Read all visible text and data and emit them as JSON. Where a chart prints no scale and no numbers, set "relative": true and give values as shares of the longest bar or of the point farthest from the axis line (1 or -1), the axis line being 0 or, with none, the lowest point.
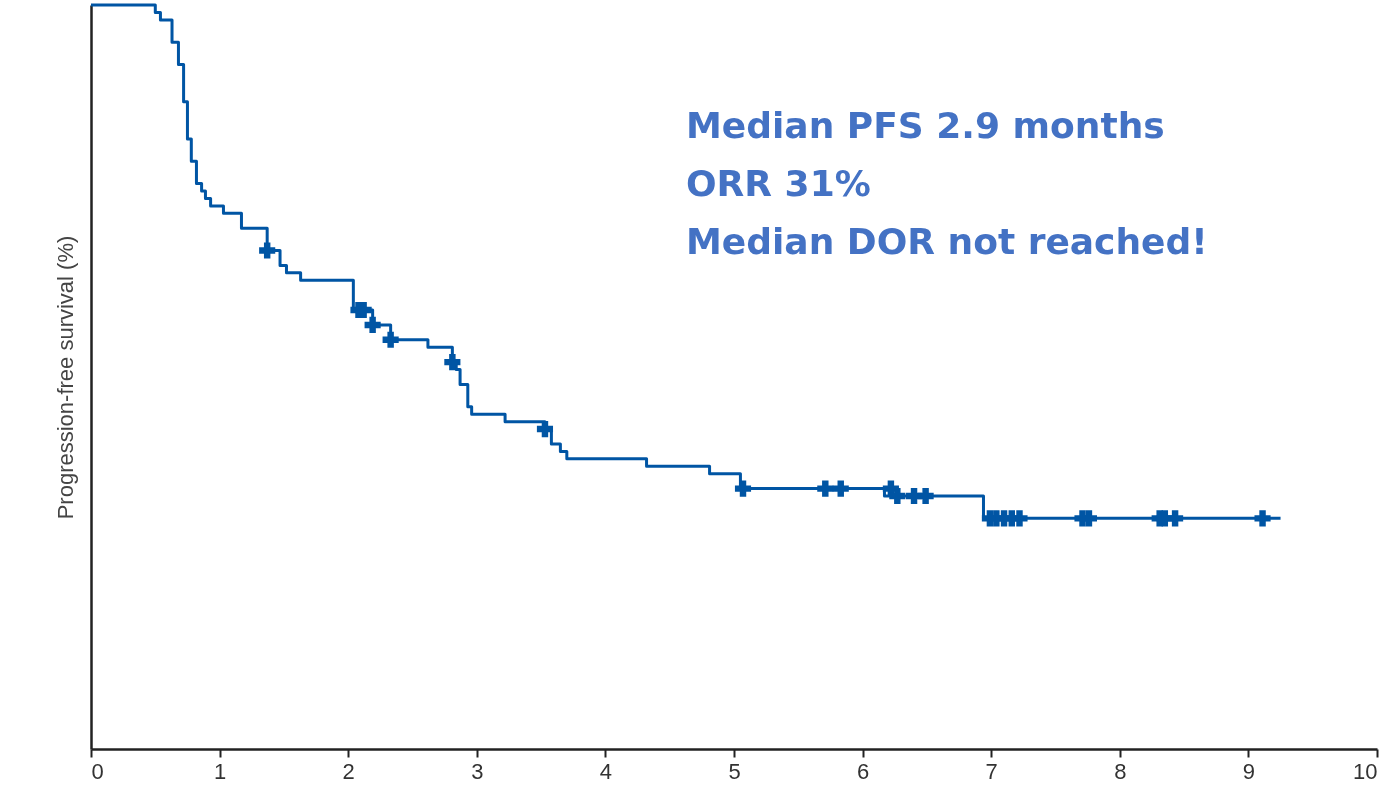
{
  "chart_data": {
    "type": "step",
    "ylabel": "Progression-free survival (%)",
    "relative": true,
    "xlim": [
      0,
      10
    ],
    "xticks": [
      0,
      1,
      2,
      3,
      4,
      5,
      6,
      7,
      8,
      9,
      10
    ],
    "grid": false,
    "line_style": "solid",
    "annotations": [
      "Median PFS 2.9 months",
      "ORR 31%",
      "Median DOR not reached!"
    ],
    "series": [
      {
        "color": "#0055a4",
        "marker": "none",
        "x": [
          0,
          0.5,
          0.54,
          0.63,
          0.68,
          0.72,
          0.75,
          0.78,
          0.82,
          0.86,
          0.89,
          0.93,
          1.03,
          1.17,
          1.37,
          1.47,
          1.52,
          1.63,
          2.04,
          2.19,
          2.33,
          2.62,
          2.81,
          2.84,
          2.87,
          2.93,
          2.96,
          3.22,
          3.53,
          3.58,
          3.65,
          3.7,
          4.32,
          4.81,
          5.05,
          6.17,
          6.94,
          9.25
        ],
        "values": [
          1,
          0.99,
          0.98,
          0.95,
          0.92,
          0.87,
          0.82,
          0.79,
          0.76,
          0.75,
          0.74,
          0.73,
          0.72,
          0.7,
          0.67,
          0.65,
          0.64,
          0.63,
          0.59,
          0.57,
          0.55,
          0.54,
          0.52,
          0.51,
          0.49,
          0.46,
          0.45,
          0.44,
          0.43,
          0.41,
          0.4,
          0.39,
          0.38,
          0.37,
          0.35,
          0.34,
          0.31,
          0.31
        ]
      },
      {
        "type": "scatter",
        "color": "#0055a4",
        "marker": "cross",
        "x": [
          1.37,
          2.08,
          2.12,
          2.19,
          2.33,
          2.81,
          3.53,
          5.07,
          5.71,
          5.83,
          6.22,
          6.27,
          6.4,
          6.49,
          6.99,
          7.04,
          7.1,
          7.16,
          7.22,
          7.71,
          7.76,
          8.31,
          8.35,
          8.43,
          9.11
        ],
        "values": [
          0.67,
          0.59,
          0.59,
          0.57,
          0.55,
          0.52,
          0.43,
          0.35,
          0.35,
          0.35,
          0.35,
          0.34,
          0.34,
          0.34,
          0.31,
          0.31,
          0.31,
          0.31,
          0.31,
          0.31,
          0.31,
          0.31,
          0.31,
          0.31,
          0.31
        ]
      }
    ]
  }
}
